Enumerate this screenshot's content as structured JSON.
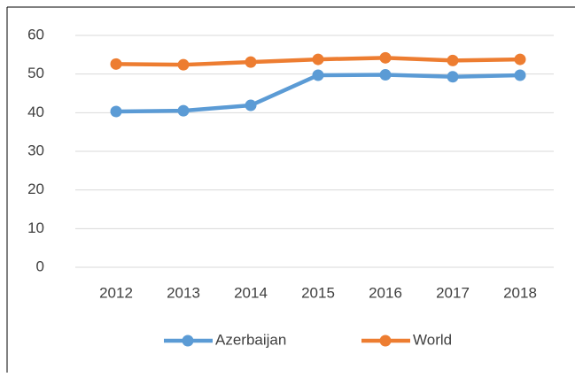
{
  "chart_data": {
    "type": "line",
    "categories": [
      "2012",
      "2013",
      "2014",
      "2015",
      "2016",
      "2017",
      "2018"
    ],
    "series": [
      {
        "name": "Azerbaijan",
        "color": "#5b9bd5",
        "values": [
          40.3,
          40.5,
          41.9,
          49.7,
          49.8,
          49.3,
          49.7
        ]
      },
      {
        "name": "World",
        "color": "#ed7d31",
        "values": [
          52.6,
          52.4,
          53.1,
          53.8,
          54.2,
          53.5,
          53.8
        ]
      }
    ],
    "ylim": [
      0,
      60
    ],
    "yticks": [
      0,
      10,
      20,
      30,
      40,
      50,
      60
    ],
    "grid": true,
    "legend": "bottom"
  }
}
